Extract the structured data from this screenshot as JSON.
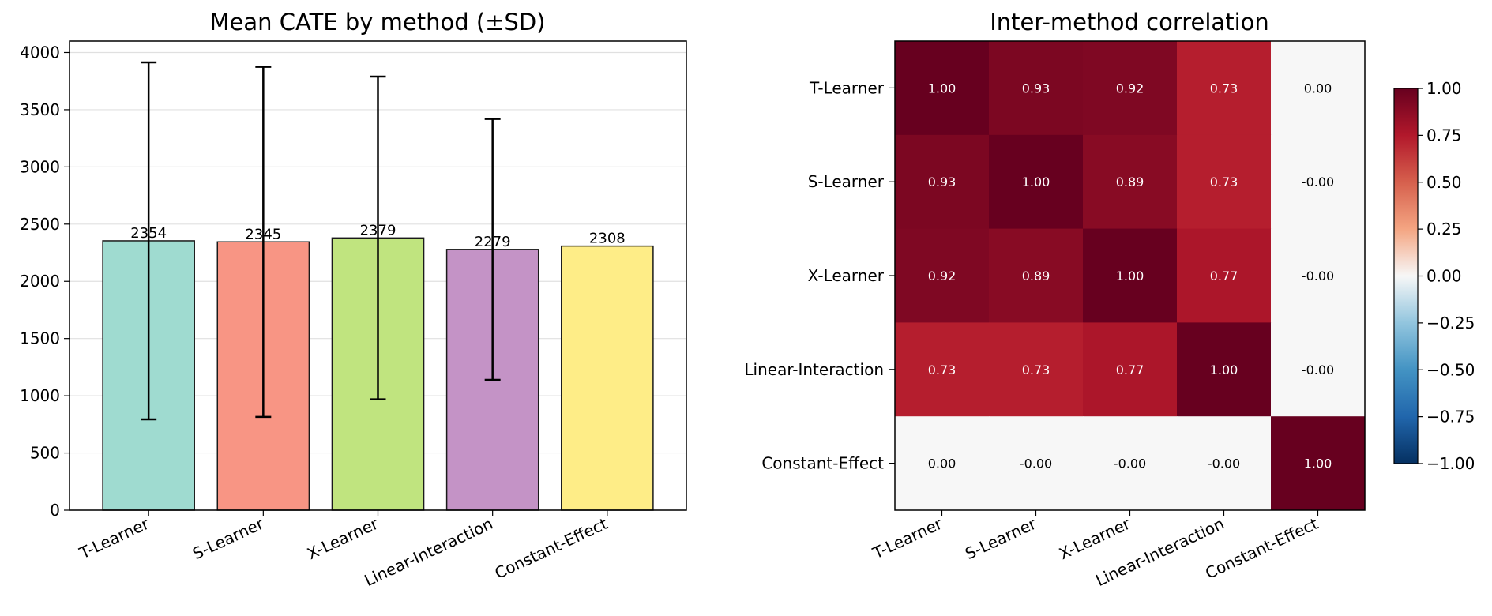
{
  "chart_data": [
    {
      "type": "bar",
      "title": "Mean CATE by method (±SD)",
      "xlabel": "",
      "ylabel": "",
      "categories": [
        "T-Learner",
        "S-Learner",
        "X-Learner",
        "Linear-Interaction",
        "Constant-Effect"
      ],
      "values": [
        2354,
        2345,
        2379,
        2279,
        2308
      ],
      "sd": [
        1560,
        1530,
        1410,
        1140,
        0
      ],
      "value_labels": [
        "2354",
        "2345",
        "2379",
        "2279",
        "2308"
      ],
      "colors": [
        "#9fdbd0",
        "#f89584",
        "#c0e47f",
        "#c493c6",
        "#feed87"
      ],
      "ylim": [
        0,
        4100
      ],
      "yticks": [
        0,
        500,
        1000,
        1500,
        2000,
        2500,
        3000,
        3500,
        4000
      ],
      "grid": true
    },
    {
      "type": "heatmap",
      "title": "Inter-method correlation",
      "labels": [
        "T-Learner",
        "S-Learner",
        "X-Learner",
        "Linear-Interaction",
        "Constant-Effect"
      ],
      "matrix": [
        [
          1.0,
          0.93,
          0.92,
          0.73,
          0.0
        ],
        [
          0.93,
          1.0,
          0.89,
          0.73,
          -0.0
        ],
        [
          0.92,
          0.89,
          1.0,
          0.77,
          -0.0
        ],
        [
          0.73,
          0.73,
          0.77,
          1.0,
          -0.0
        ],
        [
          0.0,
          -0.0,
          -0.0,
          -0.0,
          1.0
        ]
      ],
      "cell_labels": [
        [
          "1.00",
          "0.93",
          "0.92",
          "0.73",
          "0.00"
        ],
        [
          "0.93",
          "1.00",
          "0.89",
          "0.73",
          "-0.00"
        ],
        [
          "0.92",
          "0.89",
          "1.00",
          "0.77",
          "-0.00"
        ],
        [
          "0.73",
          "0.73",
          "0.77",
          "1.00",
          "-0.00"
        ],
        [
          "0.00",
          "-0.00",
          "-0.00",
          "-0.00",
          "1.00"
        ]
      ],
      "colormap": "RdBu_r",
      "vmin": -1.0,
      "vmax": 1.0,
      "colorbar_ticks": [
        "1.00",
        "0.75",
        "0.50",
        "0.25",
        "0.00",
        "−0.25",
        "−0.50",
        "−0.75",
        "−1.00"
      ],
      "colorbar_tick_values": [
        1.0,
        0.75,
        0.5,
        0.25,
        0.0,
        -0.25,
        -0.5,
        -0.75,
        -1.0
      ]
    }
  ]
}
